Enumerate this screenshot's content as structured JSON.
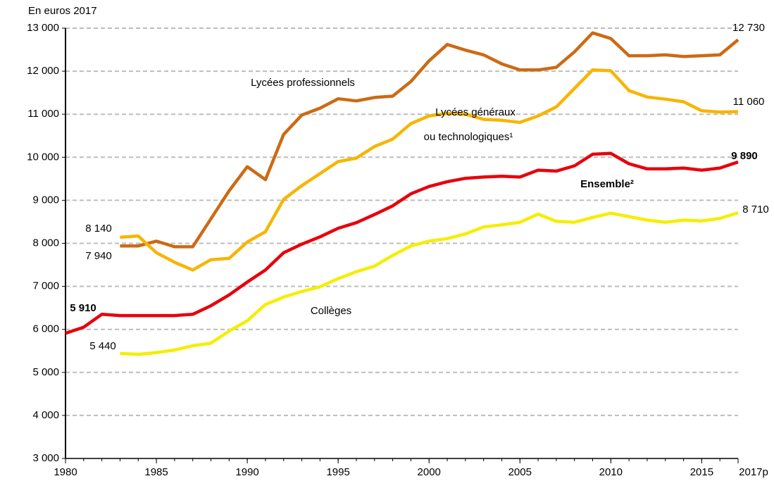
{
  "chart_data": {
    "type": "line",
    "y_axis_label": "En euros 2017",
    "xlim": [
      1980,
      2017
    ],
    "xticks": [
      1980,
      1985,
      1990,
      1995,
      2000,
      2005,
      2010,
      2015,
      {
        "value": 2017,
        "label": "2017p"
      }
    ],
    "ylim": [
      3000,
      13000
    ],
    "yticks": [
      {
        "value": 3000,
        "label": "3 000"
      },
      {
        "value": 4000,
        "label": "4 000"
      },
      {
        "value": 5000,
        "label": "5 000"
      },
      {
        "value": 6000,
        "label": "6 000"
      },
      {
        "value": 7000,
        "label": "7 000"
      },
      {
        "value": 8000,
        "label": "8 000"
      },
      {
        "value": 9000,
        "label": "9 000"
      },
      {
        "value": 10000,
        "label": "10 000"
      },
      {
        "value": 11000,
        "label": "11 000"
      },
      {
        "value": 12000,
        "label": "12 000"
      },
      {
        "value": 13000,
        "label": "13 000"
      }
    ],
    "grid": true,
    "series": [
      {
        "name": [
          "Lycées professionnels"
        ],
        "color": "#cc6a14",
        "x": [
          1983,
          1984,
          1985,
          1986,
          1987,
          1988,
          1989,
          1990,
          1991,
          1992,
          1993,
          1994,
          1995,
          1996,
          1997,
          1998,
          1999,
          2000,
          2001,
          2002,
          2003,
          2004,
          2005,
          2006,
          2007,
          2008,
          2009,
          2010,
          2011,
          2012,
          2013,
          2014,
          2015,
          2016,
          2017
        ],
        "values": [
          7940,
          7940,
          8050,
          7920,
          7920,
          8570,
          9220,
          9780,
          9480,
          10530,
          10980,
          11140,
          11360,
          11310,
          11390,
          11420,
          11760,
          12240,
          12620,
          12490,
          12380,
          12170,
          12030,
          12030,
          12090,
          12450,
          12890,
          12760,
          12360,
          12360,
          12380,
          12340,
          12360,
          12380,
          12730
        ],
        "value_labels": [
          "7 940",
          null,
          null,
          null,
          null,
          null,
          null,
          null,
          null,
          null,
          null,
          null,
          null,
          null,
          null,
          null,
          null,
          null,
          null,
          null,
          null,
          null,
          null,
          null,
          null,
          null,
          null,
          null,
          null,
          null,
          null,
          null,
          null,
          null,
          "12 730"
        ]
      },
      {
        "name": [
          "Lycées généraux",
          "ou technologiques¹"
        ],
        "color": "#f7b500",
        "x": [
          1983,
          1984,
          1985,
          1986,
          1987,
          1988,
          1989,
          1990,
          1991,
          1992,
          1993,
          1994,
          1995,
          1996,
          1997,
          1998,
          1999,
          2000,
          2001,
          2002,
          2003,
          2004,
          2005,
          2006,
          2007,
          2008,
          2009,
          2010,
          2011,
          2012,
          2013,
          2014,
          2015,
          2016,
          2017
        ],
        "values": [
          8140,
          8170,
          7780,
          7560,
          7380,
          7620,
          7650,
          8030,
          8270,
          9020,
          9340,
          9620,
          9900,
          9980,
          10250,
          10420,
          10780,
          10960,
          11020,
          11000,
          10880,
          10860,
          10810,
          10960,
          11170,
          11600,
          12030,
          12010,
          11550,
          11400,
          11350,
          11290,
          11080,
          11050,
          11060
        ],
        "value_labels": [
          "8 140",
          null,
          null,
          null,
          null,
          null,
          null,
          null,
          null,
          null,
          null,
          null,
          null,
          null,
          null,
          null,
          null,
          null,
          null,
          null,
          null,
          null,
          null,
          null,
          null,
          null,
          null,
          null,
          null,
          null,
          null,
          null,
          null,
          null,
          "11 060"
        ]
      },
      {
        "name": [
          "Ensemble²"
        ],
        "color": "#e8000b",
        "x": [
          1980,
          1981,
          1982,
          1983,
          1984,
          1985,
          1986,
          1987,
          1988,
          1989,
          1990,
          1991,
          1992,
          1993,
          1994,
          1995,
          1996,
          1997,
          1998,
          1999,
          2000,
          2001,
          2002,
          2003,
          2004,
          2005,
          2006,
          2007,
          2008,
          2009,
          2010,
          2011,
          2012,
          2013,
          2014,
          2015,
          2016,
          2017
        ],
        "values": [
          5910,
          6050,
          6350,
          6320,
          6320,
          6320,
          6320,
          6350,
          6550,
          6800,
          7100,
          7380,
          7780,
          7980,
          8150,
          8350,
          8480,
          8670,
          8870,
          9150,
          9320,
          9430,
          9510,
          9540,
          9560,
          9540,
          9700,
          9680,
          9800,
          10070,
          10090,
          9850,
          9730,
          9730,
          9750,
          9700,
          9750,
          9890
        ],
        "value_labels": [
          "5 910",
          null,
          null,
          null,
          null,
          null,
          null,
          null,
          null,
          null,
          null,
          null,
          null,
          null,
          null,
          null,
          null,
          null,
          null,
          null,
          null,
          null,
          null,
          null,
          null,
          null,
          null,
          null,
          null,
          null,
          null,
          null,
          null,
          null,
          null,
          null,
          null,
          "9 890"
        ]
      },
      {
        "name": [
          "Collèges"
        ],
        "color": "#f5ee00",
        "x": [
          1983,
          1984,
          1985,
          1986,
          1987,
          1988,
          1989,
          1990,
          1991,
          1992,
          1993,
          1994,
          1995,
          1996,
          1997,
          1998,
          1999,
          2000,
          2001,
          2002,
          2003,
          2004,
          2005,
          2006,
          2007,
          2008,
          2009,
          2010,
          2011,
          2012,
          2013,
          2014,
          2015,
          2016,
          2017
        ],
        "values": [
          5440,
          5420,
          5460,
          5520,
          5620,
          5680,
          5960,
          6200,
          6580,
          6750,
          6880,
          6990,
          7180,
          7340,
          7470,
          7720,
          7940,
          8050,
          8110,
          8220,
          8380,
          8430,
          8490,
          8680,
          8510,
          8490,
          8600,
          8700,
          8620,
          8540,
          8490,
          8540,
          8520,
          8580,
          8710
        ],
        "value_labels": [
          "5 440",
          null,
          null,
          null,
          null,
          null,
          null,
          null,
          null,
          null,
          null,
          null,
          null,
          null,
          null,
          null,
          null,
          null,
          null,
          null,
          null,
          null,
          null,
          null,
          null,
          null,
          null,
          null,
          null,
          null,
          null,
          null,
          null,
          null,
          "8 710"
        ]
      }
    ]
  }
}
